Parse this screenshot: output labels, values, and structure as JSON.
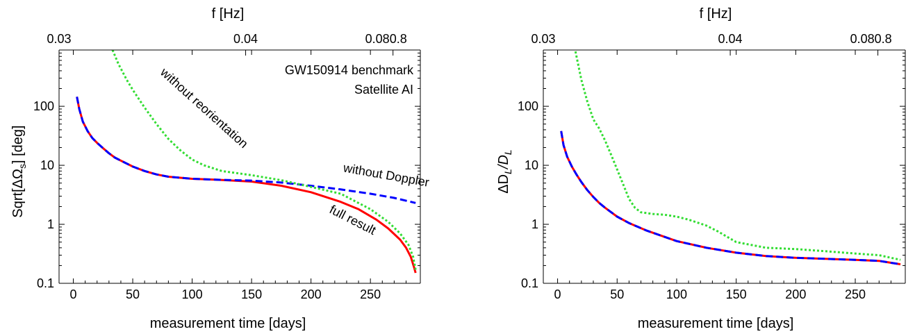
{
  "chart_data": [
    {
      "type": "line",
      "id": "left",
      "xlabel": "measurement time [days]",
      "ylabel": "Sqrt[ΔΩ",
      "ylabel_sub": "s",
      "ylabel_tail": "] [deg]",
      "top_xlabel": "f [Hz]",
      "xlim": [
        -12,
        292
      ],
      "ylim": [
        0.1,
        900
      ],
      "yscale": "log",
      "x_ticks": [
        0,
        50,
        100,
        150,
        200,
        250
      ],
      "y_ticks": [
        0.1,
        1,
        10,
        100
      ],
      "y_tick_labels": [
        "0.1",
        "1",
        "10",
        "100"
      ],
      "top_ticks": [
        {
          "label": "0.03",
          "x": -12
        },
        {
          "label": "0.04",
          "x": 145
        },
        {
          "label": "0.080.8",
          "x": 269
        }
      ],
      "annotations": [
        "GW150914 benchmark",
        "Satellite AI",
        "without reorientation",
        "without Doppler",
        "full result"
      ],
      "series": [
        {
          "color": "#ff0000",
          "dash": "solid",
          "x": [
            3,
            5,
            8,
            12,
            16,
            20,
            25,
            30,
            35,
            40,
            50,
            60,
            70,
            80,
            100,
            120,
            150,
            175,
            200,
            225,
            240,
            255,
            265,
            275,
            280,
            284,
            287,
            288
          ],
          "y": [
            145,
            90,
            55,
            38,
            29,
            24,
            19.5,
            16,
            13.5,
            12,
            9.5,
            8,
            7,
            6.4,
            5.9,
            5.7,
            5.3,
            4.5,
            3.5,
            2.4,
            1.8,
            1.2,
            0.85,
            0.55,
            0.4,
            0.28,
            0.18,
            0.15
          ]
        },
        {
          "color": "#0000ff",
          "dash": "dashed",
          "x": [
            3,
            5,
            8,
            12,
            16,
            20,
            25,
            30,
            35,
            40,
            50,
            60,
            70,
            80,
            100,
            120,
            150,
            175,
            200,
            225,
            250,
            270,
            288
          ],
          "y": [
            145,
            90,
            55,
            38,
            29,
            24,
            19.5,
            16,
            13.5,
            12,
            9.5,
            8,
            7,
            6.4,
            5.9,
            5.7,
            5.5,
            5.1,
            4.5,
            3.9,
            3.3,
            2.8,
            2.3
          ]
        },
        {
          "color": "#33dd33",
          "dash": "dotted",
          "x": [
            33,
            38,
            45,
            50,
            60,
            70,
            80,
            90,
            100,
            110,
            125,
            150,
            175,
            200,
            225,
            250,
            265,
            275,
            282,
            286,
            288
          ],
          "y": [
            900,
            520,
            280,
            190,
            95,
            50,
            28,
            18,
            12.5,
            10,
            8,
            6.8,
            5.6,
            4.3,
            3.3,
            1.8,
            1.1,
            0.7,
            0.45,
            0.28,
            0.17
          ]
        }
      ]
    },
    {
      "type": "line",
      "id": "right",
      "xlabel": "measurement time [days]",
      "ylabel": "ΔD",
      "ylabel_sub": "L",
      "ylabel_mid": "/D",
      "ylabel_sub2": "L",
      "top_xlabel": "f [Hz]",
      "xlim": [
        -12,
        292
      ],
      "ylim": [
        0.1,
        900
      ],
      "yscale": "log",
      "x_ticks": [
        0,
        50,
        100,
        150,
        200,
        250
      ],
      "y_ticks": [
        0.1,
        1,
        10,
        100
      ],
      "y_tick_labels": [
        "0.1",
        "1",
        "10",
        "100"
      ],
      "top_ticks": [
        {
          "label": "0.03",
          "x": -12
        },
        {
          "label": "0.04",
          "x": 145
        },
        {
          "label": "0.080.8",
          "x": 269
        }
      ],
      "series": [
        {
          "color": "#ff0000",
          "dash": "solid",
          "x": [
            3,
            5,
            8,
            12,
            16,
            20,
            25,
            30,
            35,
            40,
            50,
            60,
            75,
            100,
            125,
            150,
            175,
            200,
            225,
            250,
            270,
            288
          ],
          "y": [
            38,
            22,
            14,
            9.5,
            6.9,
            5.2,
            3.8,
            2.9,
            2.3,
            1.9,
            1.35,
            1.05,
            0.78,
            0.52,
            0.4,
            0.33,
            0.29,
            0.27,
            0.26,
            0.25,
            0.24,
            0.21
          ]
        },
        {
          "color": "#0000ff",
          "dash": "dashed",
          "x": [
            3,
            5,
            8,
            12,
            16,
            20,
            25,
            30,
            35,
            40,
            50,
            60,
            75,
            100,
            125,
            150,
            175,
            200,
            225,
            250,
            270,
            288
          ],
          "y": [
            38,
            22,
            14,
            9.5,
            6.9,
            5.2,
            3.8,
            2.9,
            2.3,
            1.9,
            1.35,
            1.05,
            0.78,
            0.52,
            0.4,
            0.33,
            0.29,
            0.27,
            0.26,
            0.25,
            0.24,
            0.21
          ]
        },
        {
          "color": "#33dd33",
          "dash": "dotted",
          "x": [
            15,
            20,
            25,
            30,
            35,
            40,
            45,
            50,
            55,
            60,
            65,
            70,
            80,
            90,
            100,
            110,
            125,
            135,
            150,
            175,
            200,
            225,
            250,
            270,
            288
          ],
          "y": [
            850,
            280,
            120,
            60,
            42,
            26,
            15,
            8.5,
            4.8,
            2.7,
            1.9,
            1.6,
            1.5,
            1.45,
            1.35,
            1.2,
            0.95,
            0.75,
            0.5,
            0.4,
            0.38,
            0.35,
            0.32,
            0.3,
            0.25
          ]
        }
      ]
    }
  ]
}
